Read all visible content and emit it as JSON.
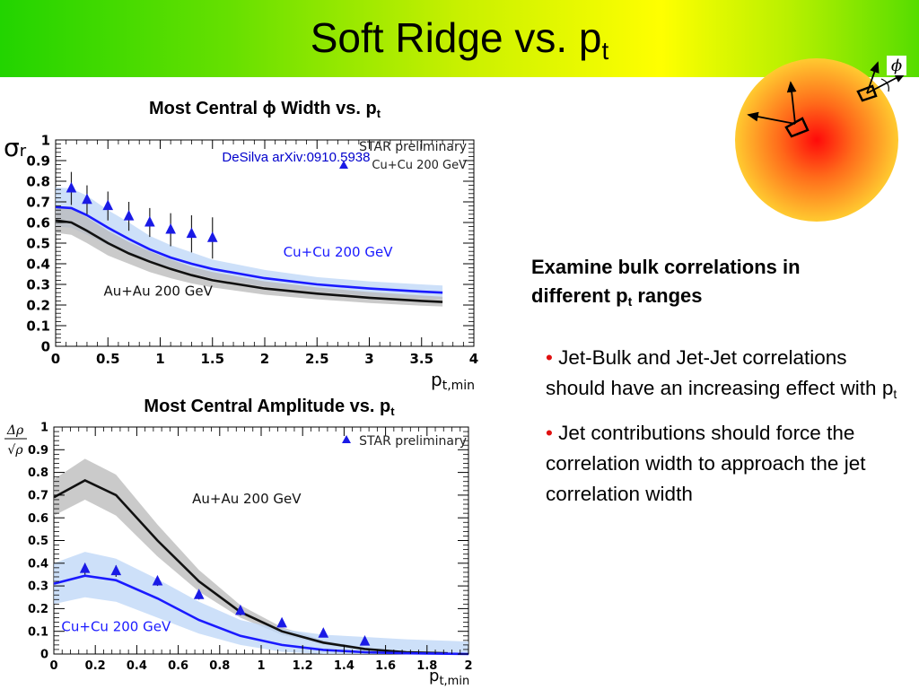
{
  "slide": {
    "title_main": "Soft Ridge vs. p",
    "title_sub": "t"
  },
  "charts": {
    "width_chart": {
      "heading_main": "Most Central ϕ Width vs. p",
      "heading_sub": "t"
    },
    "amplitude_chart": {
      "heading_main": "Most Central Amplitude vs. p",
      "heading_sub": "t"
    }
  },
  "right_panel": {
    "heading_line1": "Examine bulk correlations in",
    "heading_line2_main": "different p",
    "heading_line2_sub": "t",
    "heading_line2_end": " ranges",
    "bullet1_main": "Jet-Bulk and Jet-Jet correlations should have an increasing effect with p",
    "bullet1_sub": "t",
    "bullet2": "Jet contributions should force the correlation width to approach the jet correlation width"
  },
  "diagram": {
    "phi_label": "ϕ"
  },
  "colors": {
    "cu_blue": "#1a1aff",
    "cu_band": "#bcd6f7",
    "au_black": "#111111",
    "au_band": "#b8b8b8",
    "marker_blue": "#1a1ae6",
    "annotation_blue": "#0000cc"
  },
  "chart_data": [
    {
      "type": "line",
      "title": "Most Central ϕ Width vs. p_t",
      "xlabel": "p_t,min",
      "ylabel": "σr",
      "xlim": [
        0,
        4
      ],
      "ylim": [
        0,
        1
      ],
      "xticks": [
        "0",
        "0.5",
        "1",
        "1.5",
        "2",
        "2.5",
        "3",
        "3.5",
        "4"
      ],
      "yticks": [
        "0",
        "0.1",
        "0.2",
        "0.3",
        "0.4",
        "0.5",
        "0.6",
        "0.7",
        "0.8",
        "0.9",
        "1"
      ],
      "legend": {
        "position": "top-right",
        "entries": [
          "STAR preliminary",
          "Cu+Cu 200 GeV"
        ]
      },
      "annotations": [
        "DeSilva arXiv:0910.5938",
        "Cu+Cu 200 GeV",
        "Au+Au 200 GeV"
      ],
      "series": [
        {
          "name": "Cu+Cu 200 GeV",
          "kind": "band-line",
          "x": [
            0,
            0.15,
            0.3,
            0.5,
            0.7,
            0.9,
            1.1,
            1.3,
            1.5,
            2.0,
            2.5,
            3.0,
            3.5,
            3.7
          ],
          "values": [
            0.675,
            0.67,
            0.635,
            0.575,
            0.52,
            0.47,
            0.43,
            0.4,
            0.375,
            0.33,
            0.3,
            0.28,
            0.265,
            0.26
          ],
          "band_low": [
            0.58,
            0.575,
            0.54,
            0.49,
            0.45,
            0.41,
            0.38,
            0.355,
            0.33,
            0.29,
            0.265,
            0.245,
            0.232,
            0.228
          ],
          "band_high": [
            0.77,
            0.765,
            0.73,
            0.66,
            0.6,
            0.535,
            0.49,
            0.455,
            0.42,
            0.37,
            0.335,
            0.315,
            0.3,
            0.295
          ]
        },
        {
          "name": "Au+Au 200 GeV",
          "kind": "band-line",
          "x": [
            0,
            0.15,
            0.3,
            0.5,
            0.7,
            0.9,
            1.1,
            1.3,
            1.5,
            2.0,
            2.5,
            3.0,
            3.5,
            3.7
          ],
          "values": [
            0.61,
            0.6,
            0.56,
            0.5,
            0.45,
            0.41,
            0.375,
            0.345,
            0.32,
            0.28,
            0.255,
            0.235,
            0.22,
            0.215
          ],
          "band_low": [
            0.55,
            0.54,
            0.5,
            0.44,
            0.4,
            0.36,
            0.33,
            0.305,
            0.285,
            0.25,
            0.228,
            0.21,
            0.197,
            0.193
          ],
          "band_high": [
            0.68,
            0.665,
            0.625,
            0.56,
            0.505,
            0.46,
            0.42,
            0.385,
            0.36,
            0.315,
            0.285,
            0.263,
            0.246,
            0.24
          ]
        },
        {
          "name": "STAR preliminary Cu+Cu 200 GeV",
          "kind": "points",
          "x": [
            0.15,
            0.3,
            0.5,
            0.7,
            0.9,
            1.1,
            1.3,
            1.5
          ],
          "values": [
            0.765,
            0.71,
            0.68,
            0.63,
            0.6,
            0.565,
            0.545,
            0.525
          ],
          "err_low": [
            0.08,
            0.07,
            0.07,
            0.07,
            0.07,
            0.08,
            0.09,
            0.1
          ],
          "err_high": [
            0.08,
            0.07,
            0.07,
            0.07,
            0.07,
            0.08,
            0.09,
            0.1
          ]
        }
      ]
    },
    {
      "type": "line",
      "title": "Most Central Amplitude vs. p_t",
      "xlabel": "p_t,min",
      "ylabel": "Δρ/√ρ",
      "xlim": [
        0,
        2
      ],
      "ylim": [
        0,
        1
      ],
      "xticks": [
        "0",
        "0.2",
        "0.4",
        "0.6",
        "0.8",
        "1",
        "1.2",
        "1.4",
        "1.6",
        "1.8",
        "2"
      ],
      "yticks": [
        "0",
        "0.1",
        "0.2",
        "0.3",
        "0.4",
        "0.5",
        "0.6",
        "0.7",
        "0.8",
        "0.9",
        "1"
      ],
      "legend": {
        "position": "top-right",
        "entries": [
          "STAR preliminary"
        ]
      },
      "annotations": [
        "Au+Au 200 GeV",
        "Cu+Cu 200 GeV"
      ],
      "series": [
        {
          "name": "Au+Au 200 GeV",
          "kind": "band-line",
          "x": [
            0,
            0.15,
            0.3,
            0.5,
            0.7,
            0.9,
            1.1,
            1.3,
            1.5,
            1.7,
            1.9
          ],
          "values": [
            0.69,
            0.765,
            0.7,
            0.5,
            0.32,
            0.185,
            0.1,
            0.05,
            0.022,
            0.008,
            0.003
          ],
          "band_low": [
            0.61,
            0.68,
            0.61,
            0.43,
            0.275,
            0.16,
            0.085,
            0.042,
            0.018,
            0.006,
            0.002
          ],
          "band_high": [
            0.77,
            0.86,
            0.79,
            0.57,
            0.37,
            0.215,
            0.118,
            0.06,
            0.027,
            0.011,
            0.005
          ]
        },
        {
          "name": "Cu+Cu 200 GeV",
          "kind": "band-line",
          "x": [
            0,
            0.15,
            0.3,
            0.5,
            0.7,
            0.9,
            1.1,
            1.3,
            1.5,
            1.7,
            1.9,
            2.0
          ],
          "values": [
            0.31,
            0.345,
            0.325,
            0.245,
            0.15,
            0.08,
            0.04,
            0.018,
            0.008,
            0.003,
            0.001,
            0.0
          ],
          "band_low": [
            0.22,
            0.25,
            0.23,
            0.16,
            0.09,
            0.04,
            0.01,
            0.0,
            0.0,
            0.0,
            0.0,
            0.0
          ],
          "band_high": [
            0.4,
            0.45,
            0.42,
            0.33,
            0.23,
            0.15,
            0.11,
            0.085,
            0.075,
            0.065,
            0.058,
            0.055
          ]
        },
        {
          "name": "STAR preliminary",
          "kind": "points",
          "x": [
            0.15,
            0.3,
            0.5,
            0.7,
            0.9,
            1.1,
            1.3,
            1.5
          ],
          "values": [
            0.375,
            0.365,
            0.32,
            0.26,
            0.19,
            0.135,
            0.09,
            0.055
          ],
          "err_low": [
            0.025,
            0.025,
            0.02,
            0.02,
            0.02,
            0.015,
            0.015,
            0.01
          ],
          "err_high": [
            0.025,
            0.025,
            0.02,
            0.02,
            0.02,
            0.015,
            0.015,
            0.01
          ]
        }
      ]
    }
  ]
}
